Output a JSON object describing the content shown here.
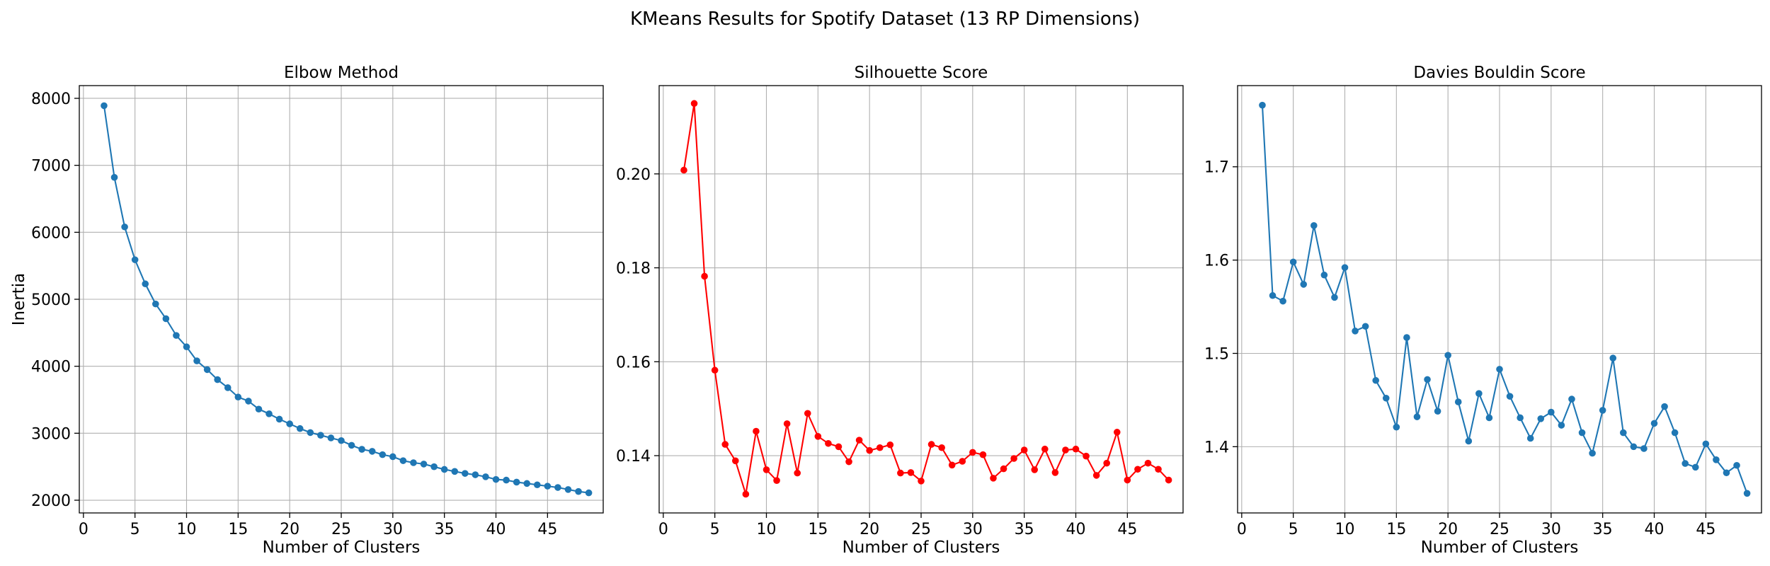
{
  "figure": {
    "suptitle": "KMeans Results for Spotify Dataset (13 RP Dimensions)"
  },
  "chart_data": [
    {
      "type": "line",
      "title": "Elbow Method",
      "xlabel": "Number of Clusters",
      "ylabel": "Inertia",
      "xlim": [
        -0.4,
        50.4
      ],
      "ylim": [
        1810,
        8190
      ],
      "xticks": [
        0,
        5,
        10,
        15,
        20,
        25,
        30,
        35,
        40,
        45
      ],
      "yticks": [
        2000,
        3000,
        4000,
        5000,
        6000,
        7000,
        8000
      ],
      "ytick_decimals": 0,
      "grid": true,
      "color": "#1f77b4",
      "x": [
        2,
        3,
        4,
        5,
        6,
        7,
        8,
        9,
        10,
        11,
        12,
        13,
        14,
        15,
        16,
        17,
        18,
        19,
        20,
        21,
        22,
        23,
        24,
        25,
        26,
        27,
        28,
        29,
        30,
        31,
        32,
        33,
        34,
        35,
        36,
        37,
        38,
        39,
        40,
        41,
        42,
        43,
        44,
        45,
        46,
        47,
        48,
        49
      ],
      "series": [
        {
          "values": [
            7890,
            6820,
            6080,
            5590,
            5230,
            4930,
            4710,
            4460,
            4290,
            4080,
            3950,
            3800,
            3680,
            3540,
            3480,
            3360,
            3290,
            3210,
            3140,
            3070,
            3010,
            2970,
            2930,
            2890,
            2820,
            2760,
            2730,
            2680,
            2650,
            2590,
            2560,
            2540,
            2500,
            2460,
            2430,
            2400,
            2380,
            2350,
            2310,
            2300,
            2270,
            2250,
            2230,
            2210,
            2190,
            2160,
            2130,
            2110
          ]
        }
      ]
    },
    {
      "type": "line",
      "title": "Silhouette Score",
      "xlabel": "Number of Clusters",
      "ylabel": "",
      "xlim": [
        -0.4,
        50.4
      ],
      "ylim": [
        0.1278,
        0.2188
      ],
      "xticks": [
        0,
        5,
        10,
        15,
        20,
        25,
        30,
        35,
        40,
        45
      ],
      "yticks": [
        0.14,
        0.16,
        0.18,
        0.2
      ],
      "ytick_decimals": 2,
      "grid": true,
      "color": "#ff0000",
      "x": [
        2,
        3,
        4,
        5,
        6,
        7,
        8,
        9,
        10,
        11,
        12,
        13,
        14,
        15,
        16,
        17,
        18,
        19,
        20,
        21,
        22,
        23,
        24,
        25,
        26,
        27,
        28,
        29,
        30,
        31,
        32,
        33,
        34,
        35,
        36,
        37,
        38,
        39,
        40,
        41,
        42,
        43,
        44,
        45,
        46,
        47,
        48,
        49
      ],
      "series": [
        {
          "values": [
            0.2008,
            0.215,
            0.1782,
            0.1582,
            0.1424,
            0.1389,
            0.1318,
            0.1452,
            0.137,
            0.1347,
            0.1468,
            0.1363,
            0.149,
            0.1441,
            0.1426,
            0.1419,
            0.1387,
            0.1433,
            0.1411,
            0.1417,
            0.1423,
            0.1363,
            0.1364,
            0.1346,
            0.1424,
            0.1417,
            0.138,
            0.1388,
            0.1407,
            0.1402,
            0.1352,
            0.1372,
            0.1394,
            0.1412,
            0.137,
            0.1414,
            0.1364,
            0.1412,
            0.1414,
            0.1399,
            0.1358,
            0.1384,
            0.145,
            0.1348,
            0.1371,
            0.1384,
            0.1371,
            0.1348
          ]
        }
      ]
    },
    {
      "type": "line",
      "title": "Davies Bouldin Score",
      "xlabel": "Number of Clusters",
      "ylabel": "",
      "xlim": [
        -0.4,
        50.4
      ],
      "ylim": [
        1.329,
        1.787
      ],
      "xticks": [
        0,
        5,
        10,
        15,
        20,
        25,
        30,
        35,
        40,
        45
      ],
      "yticks": [
        1.4,
        1.5,
        1.6,
        1.7
      ],
      "ytick_decimals": 1,
      "grid": true,
      "color": "#1f77b4",
      "x": [
        2,
        3,
        4,
        5,
        6,
        7,
        8,
        9,
        10,
        11,
        12,
        13,
        14,
        15,
        16,
        17,
        18,
        19,
        20,
        21,
        22,
        23,
        24,
        25,
        26,
        27,
        28,
        29,
        30,
        31,
        32,
        33,
        34,
        35,
        36,
        37,
        38,
        39,
        40,
        41,
        42,
        43,
        44,
        45,
        46,
        47,
        48,
        49
      ],
      "series": [
        {
          "values": [
            1.766,
            1.562,
            1.556,
            1.598,
            1.574,
            1.637,
            1.584,
            1.56,
            1.592,
            1.524,
            1.529,
            1.471,
            1.452,
            1.421,
            1.517,
            1.432,
            1.472,
            1.438,
            1.498,
            1.448,
            1.406,
            1.457,
            1.431,
            1.483,
            1.454,
            1.431,
            1.409,
            1.43,
            1.437,
            1.423,
            1.451,
            1.415,
            1.393,
            1.439,
            1.495,
            1.415,
            1.4,
            1.398,
            1.425,
            1.443,
            1.415,
            1.382,
            1.378,
            1.403,
            1.386,
            1.372,
            1.38,
            1.35
          ]
        }
      ]
    }
  ]
}
